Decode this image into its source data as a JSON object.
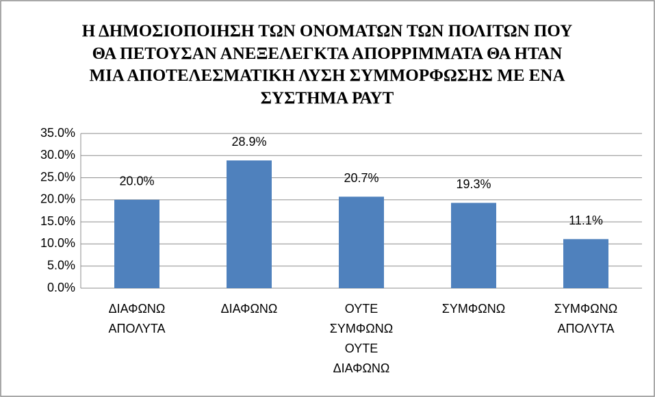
{
  "chart_data": {
    "type": "bar",
    "title": "Η ΔΗΜΟΣΙΟΠΟΙΗΣΗ ΤΩΝ ΟΝΟΜΑΤΩΝ ΤΩΝ ΠΟΛΙΤΩΝ ΠΟΥ ΘΑ ΠΕΤΟΥΣΑΝ ΑΝΕΞΕΛΕΓΚΤΑ ΑΠΟΡΡΙΜΜΑΤΑ ΘΑ ΗΤΑΝ ΜΙΑ ΑΠΟΤΕΛΕΣΜΑΤΙΚΗ ΛΥΣΗ ΣΥΜΜΟΡΦΩΣΗΣ ΜΕ ΕΝΑ ΣΥΣΤΗΜΑ ΡΑΥΤ",
    "categories": [
      "ΔΙΑΦΩΝΩ ΑΠΟΛΥΤΑ",
      "ΔΙΑΦΩΝΩ",
      "ΟΥΤΕ ΣΥΜΦΩΝΩ ΟΥΤΕ ΔΙΑΦΩΝΩ",
      "ΣΥΜΦΩΝΩ",
      "ΣΥΜΦΩΝΩ ΑΠΟΛΥΤΑ"
    ],
    "values": [
      20.0,
      28.9,
      20.7,
      19.3,
      11.1
    ],
    "value_labels": [
      "20.0%",
      "28.9%",
      "20.7%",
      "19.3%",
      "11.1%"
    ],
    "color": "#4f81bd",
    "ylim": [
      0,
      35
    ],
    "yticks": [
      {
        "value": 0,
        "label": "0.0%"
      },
      {
        "value": 5,
        "label": "5.0%"
      },
      {
        "value": 10,
        "label": "10.0%"
      },
      {
        "value": 15,
        "label": "15.0%"
      },
      {
        "value": 20,
        "label": "20.0%"
      },
      {
        "value": 25,
        "label": "25.0%"
      },
      {
        "value": 30,
        "label": "30.0%"
      },
      {
        "value": 35,
        "label": "35.0%"
      }
    ],
    "grid": true
  }
}
